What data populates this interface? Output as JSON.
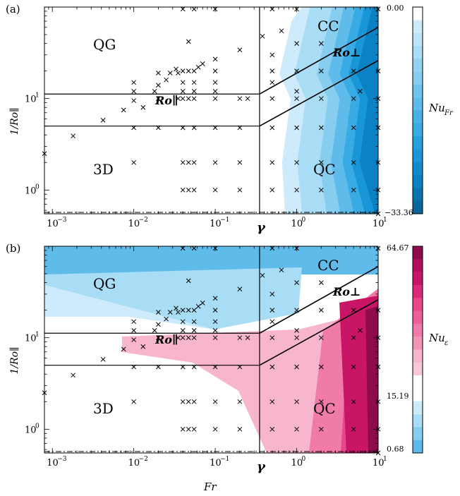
{
  "chart_data": [
    {
      "type": "scatter",
      "panel_label": "(a)",
      "xlabel": "",
      "ylabel": "1/Ro∥",
      "xscale": "log",
      "yscale": "log",
      "xlim": [
        0.0008,
        10
      ],
      "ylim": [
        0.55,
        100
      ],
      "xticks": [
        {
          "v": 0.001,
          "base": "10",
          "exp": "−3"
        },
        {
          "v": 0.01,
          "base": "10",
          "exp": "−2"
        },
        {
          "v": 0.1,
          "base": "10",
          "exp": "−1"
        },
        {
          "v": 1,
          "base": "10",
          "exp": "0"
        },
        {
          "v": 10,
          "base": "10",
          "exp": "1"
        }
      ],
      "yticks": [
        {
          "v": 1,
          "base": "10",
          "exp": "0"
        },
        {
          "v": 10,
          "base": "10",
          "exp": "1"
        }
      ],
      "gamma_label": "γ",
      "regions": [
        "QG",
        "3D",
        "CC",
        "QC"
      ],
      "line_labels": {
        "parallel": "Ro∥",
        "perp": "Ro⊥"
      },
      "colorbar": {
        "label": "Nu_Fr",
        "label_main": "Nu",
        "label_sub": "Fr",
        "top": "0.00",
        "bottom": "−33.36",
        "palette": "blues"
      }
    },
    {
      "type": "scatter",
      "panel_label": "(b)",
      "xlabel": "Fr",
      "ylabel": "1/Ro∥",
      "xscale": "log",
      "yscale": "log",
      "xlim": [
        0.0008,
        10
      ],
      "ylim": [
        0.55,
        100
      ],
      "xticks": [
        {
          "v": 0.001,
          "base": "10",
          "exp": "−3"
        },
        {
          "v": 0.01,
          "base": "10",
          "exp": "−2"
        },
        {
          "v": 0.1,
          "base": "10",
          "exp": "−1"
        },
        {
          "v": 1,
          "base": "10",
          "exp": "0"
        },
        {
          "v": 10,
          "base": "10",
          "exp": "1"
        }
      ],
      "yticks": [
        {
          "v": 1,
          "base": "10",
          "exp": "0"
        },
        {
          "v": 10,
          "base": "10",
          "exp": "1"
        }
      ],
      "gamma_label": "γ",
      "regions": [
        "QG",
        "3D",
        "CC",
        "QC"
      ],
      "line_labels": {
        "parallel": "Ro∥",
        "perp": "Ro⊥"
      },
      "colorbar": {
        "label": "Nu_ε",
        "label_main": "Nu",
        "label_sub": "ε",
        "top": "64.67",
        "middle": "15.19",
        "bottom": "0.68",
        "palette": "diverging"
      }
    }
  ],
  "shared": {
    "gamma_x": 0.35,
    "ro_par_lines": [
      11.2,
      5.0
    ],
    "perp_lines": [
      {
        "y_at_gamma": 11.2,
        "y_at_10": 60
      },
      {
        "y_at_gamma": 5.0,
        "y_at_10": 26
      }
    ],
    "dashdot_y": 0.57,
    "points": [
      [
        0.0008,
        2.5
      ],
      [
        0.0018,
        3.9
      ],
      [
        0.0042,
        5.8
      ],
      [
        0.0075,
        7.5
      ],
      [
        0.01,
        0.5
      ],
      [
        0.013,
        8.0
      ],
      [
        0.01,
        2.0
      ],
      [
        0.01,
        4.8
      ],
      [
        0.01,
        9.5
      ],
      [
        0.01,
        12
      ],
      [
        0.01,
        15
      ],
      [
        0.018,
        12
      ],
      [
        0.02,
        10
      ],
      [
        0.02,
        4.8
      ],
      [
        0.02,
        14
      ],
      [
        0.02,
        19
      ],
      [
        0.025,
        16
      ],
      [
        0.028,
        19
      ],
      [
        0.033,
        21
      ],
      [
        0.035,
        10
      ],
      [
        0.035,
        19
      ],
      [
        0.04,
        1
      ],
      [
        0.04,
        2
      ],
      [
        0.04,
        4.8
      ],
      [
        0.04,
        10
      ],
      [
        0.04,
        12
      ],
      [
        0.04,
        15
      ],
      [
        0.04,
        20
      ],
      [
        0.04,
        95
      ],
      [
        0.047,
        1
      ],
      [
        0.047,
        2
      ],
      [
        0.047,
        10
      ],
      [
        0.047,
        20
      ],
      [
        0.047,
        42
      ],
      [
        0.055,
        1
      ],
      [
        0.055,
        2
      ],
      [
        0.055,
        4.8
      ],
      [
        0.055,
        10
      ],
      [
        0.055,
        12
      ],
      [
        0.055,
        15
      ],
      [
        0.055,
        20
      ],
      [
        0.055,
        95
      ],
      [
        0.062,
        22
      ],
      [
        0.07,
        24
      ],
      [
        0.1,
        0.5
      ],
      [
        0.1,
        1
      ],
      [
        0.1,
        2
      ],
      [
        0.1,
        4.8
      ],
      [
        0.1,
        10
      ],
      [
        0.1,
        12
      ],
      [
        0.1,
        15
      ],
      [
        0.1,
        20
      ],
      [
        0.1,
        27
      ],
      [
        0.1,
        95
      ],
      [
        0.2,
        0.5
      ],
      [
        0.2,
        1
      ],
      [
        0.2,
        2
      ],
      [
        0.2,
        4.8
      ],
      [
        0.2,
        10
      ],
      [
        0.2,
        34
      ],
      [
        0.25,
        10
      ],
      [
        0.38,
        48
      ],
      [
        0.5,
        0.5
      ],
      [
        0.5,
        1
      ],
      [
        0.5,
        2
      ],
      [
        0.5,
        4.8
      ],
      [
        0.5,
        10
      ],
      [
        0.5,
        15
      ],
      [
        0.5,
        20
      ],
      [
        0.5,
        30
      ],
      [
        0.5,
        95
      ],
      [
        0.65,
        55
      ],
      [
        1,
        0.5
      ],
      [
        1,
        1
      ],
      [
        1,
        2
      ],
      [
        1,
        4.8
      ],
      [
        1,
        10
      ],
      [
        1,
        12
      ],
      [
        1,
        20
      ],
      [
        1,
        40
      ],
      [
        1,
        95
      ],
      [
        2,
        0.5
      ],
      [
        2,
        1
      ],
      [
        2,
        2
      ],
      [
        2,
        4.8
      ],
      [
        2,
        10
      ],
      [
        2,
        20
      ],
      [
        2,
        40
      ],
      [
        5,
        0.5
      ],
      [
        5,
        1
      ],
      [
        5,
        2
      ],
      [
        5,
        4.8
      ],
      [
        5,
        10
      ],
      [
        5,
        20
      ],
      [
        6,
        12
      ],
      [
        10,
        0.55
      ],
      [
        10,
        1
      ],
      [
        10,
        2
      ],
      [
        10,
        4.8
      ],
      [
        10,
        10
      ],
      [
        10,
        20
      ],
      [
        10,
        95
      ]
    ]
  }
}
